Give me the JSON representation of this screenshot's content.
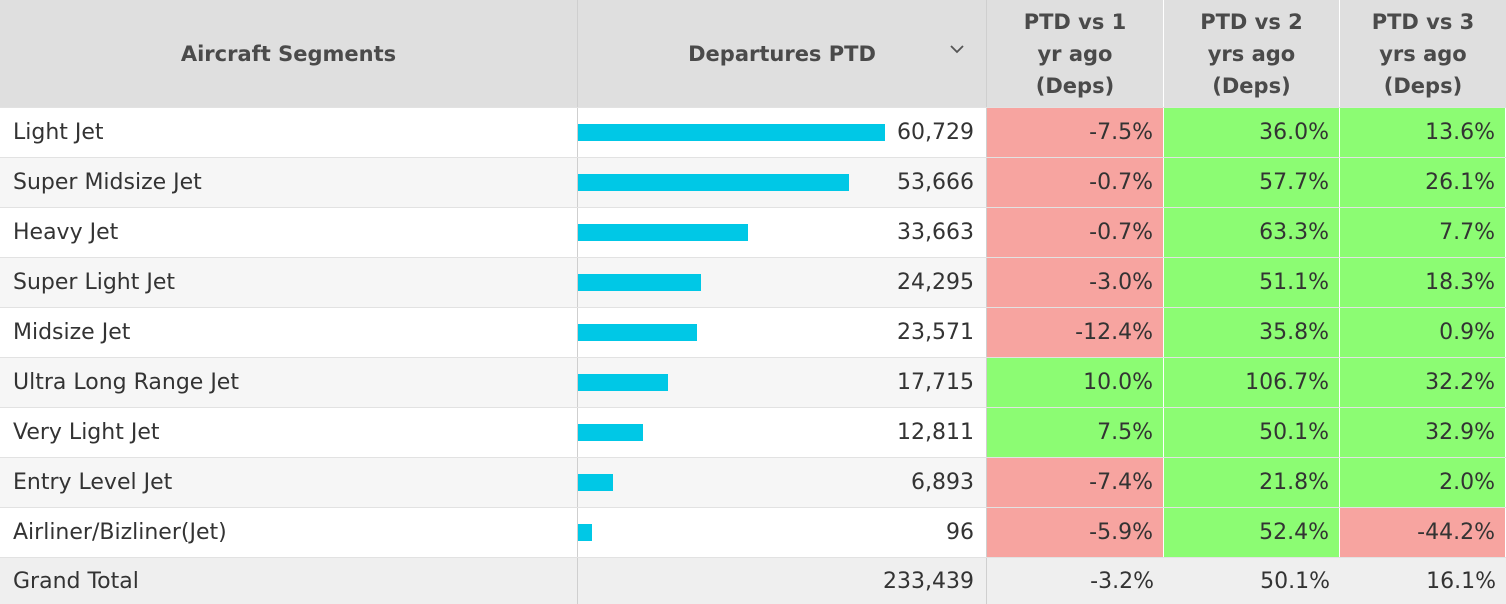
{
  "headers": {
    "segment": "Aircraft Segments",
    "departures": "Departures PTD",
    "vs1": "PTD vs 1\nyr ago\n(Deps)",
    "vs2": "PTD vs 2\nyrs ago\n(Deps)",
    "vs3": "PTD vs 3\nyrs ago\n(Deps)"
  },
  "sort_icon": "chevron-down-icon",
  "colors": {
    "bar": "#00c8e6",
    "negative": "#f7a4a0",
    "positive": "#8cfc73",
    "header": "#dfdfdf"
  },
  "chart_data": {
    "type": "table",
    "columns": [
      "Aircraft Segments",
      "Departures PTD",
      "PTD vs 1 yr ago (Deps)",
      "PTD vs 2 yrs ago (Deps)",
      "PTD vs 3 yrs ago (Deps)"
    ],
    "rows": [
      {
        "segment": "Light Jet",
        "departures": 60729,
        "departures_label": "60,729",
        "vs1": "-7.5%",
        "vs2": "36.0%",
        "vs3": "13.6%"
      },
      {
        "segment": "Super Midsize Jet",
        "departures": 53666,
        "departures_label": "53,666",
        "vs1": "-0.7%",
        "vs2": "57.7%",
        "vs3": "26.1%"
      },
      {
        "segment": "Heavy Jet",
        "departures": 33663,
        "departures_label": "33,663",
        "vs1": "-0.7%",
        "vs2": "63.3%",
        "vs3": "7.7%"
      },
      {
        "segment": "Super Light Jet",
        "departures": 24295,
        "departures_label": "24,295",
        "vs1": "-3.0%",
        "vs2": "51.1%",
        "vs3": "18.3%"
      },
      {
        "segment": "Midsize Jet",
        "departures": 23571,
        "departures_label": "23,571",
        "vs1": "-12.4%",
        "vs2": "35.8%",
        "vs3": "0.9%"
      },
      {
        "segment": "Ultra Long Range Jet",
        "departures": 17715,
        "departures_label": "17,715",
        "vs1": "10.0%",
        "vs2": "106.7%",
        "vs3": "32.2%"
      },
      {
        "segment": "Very Light Jet",
        "departures": 12811,
        "departures_label": "12,811",
        "vs1": "7.5%",
        "vs2": "50.1%",
        "vs3": "32.9%"
      },
      {
        "segment": "Entry Level Jet",
        "departures": 6893,
        "departures_label": "6,893",
        "vs1": "-7.4%",
        "vs2": "21.8%",
        "vs3": "2.0%"
      },
      {
        "segment": "Airliner/Bizliner(Jet)",
        "departures": 96,
        "departures_label": "96",
        "vs1": "-5.9%",
        "vs2": "52.4%",
        "vs3": "-44.2%"
      }
    ],
    "total": {
      "segment": "Grand Total",
      "departures_label": "233,439",
      "vs1": "-3.2%",
      "vs2": "50.1%",
      "vs3": "16.1%"
    }
  }
}
